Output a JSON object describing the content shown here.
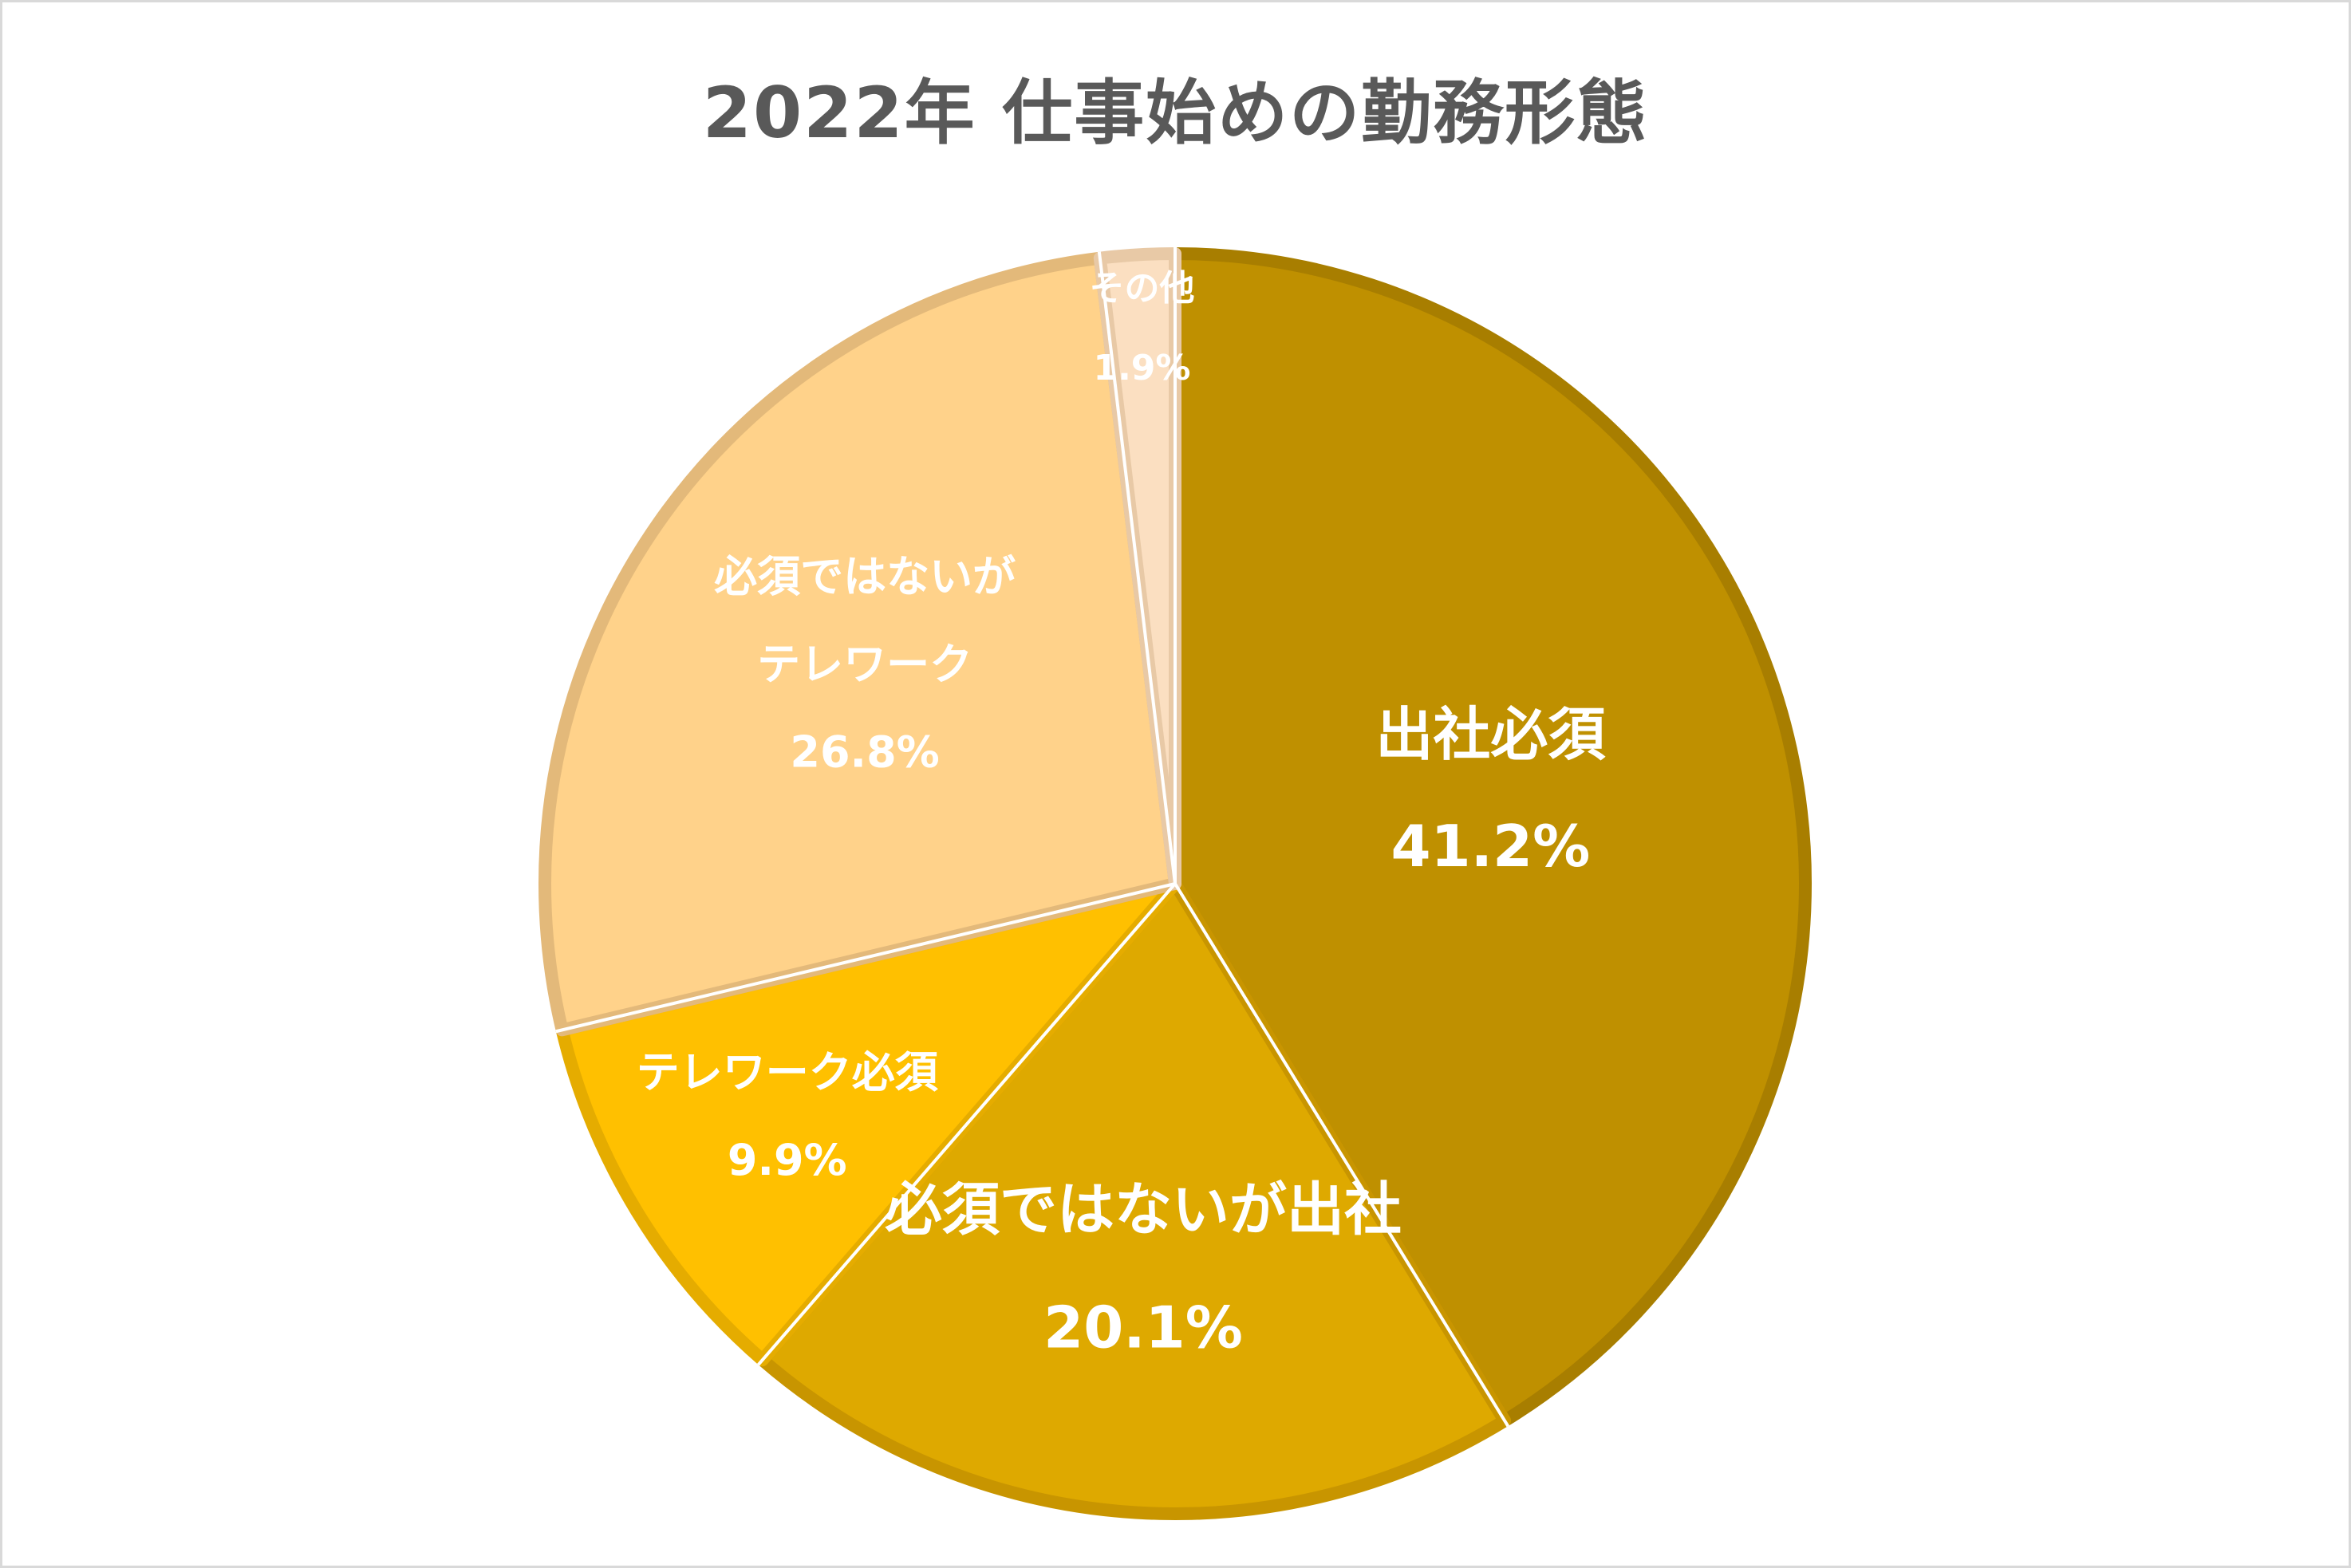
{
  "chart_data": {
    "type": "pie",
    "title": "2022年 仕事始めの勤務形態",
    "slices": [
      {
        "label": "出社必須",
        "value": 41.2,
        "value_label": "41.2%",
        "color": "#bf9000",
        "edge": "#a87e00",
        "label_lines": [
          "出社必須"
        ]
      },
      {
        "label": "必須ではないが出社",
        "value": 20.1,
        "value_label": "20.1%",
        "color": "#dea900",
        "edge": "#c89500",
        "label_lines": [
          "必須ではないが出社"
        ]
      },
      {
        "label": "テレワーク必須",
        "value": 9.9,
        "value_label": "9.9%",
        "color": "#ffc000",
        "edge": "#e5ac00",
        "label_lines": [
          "テレワーク必須"
        ]
      },
      {
        "label": "必須ではないがテレワーク",
        "value": 26.8,
        "value_label": "26.8%",
        "color": "#ffd28a",
        "edge": "#e3b97a",
        "label_lines": [
          "必須ではないが",
          "テレワーク"
        ]
      },
      {
        "label": "その他",
        "value": 1.9,
        "value_label": "1.9%",
        "color": "#fbdfc1",
        "edge": "#e8c9a6",
        "label_lines": [
          "その他"
        ]
      }
    ],
    "legend": "none"
  }
}
